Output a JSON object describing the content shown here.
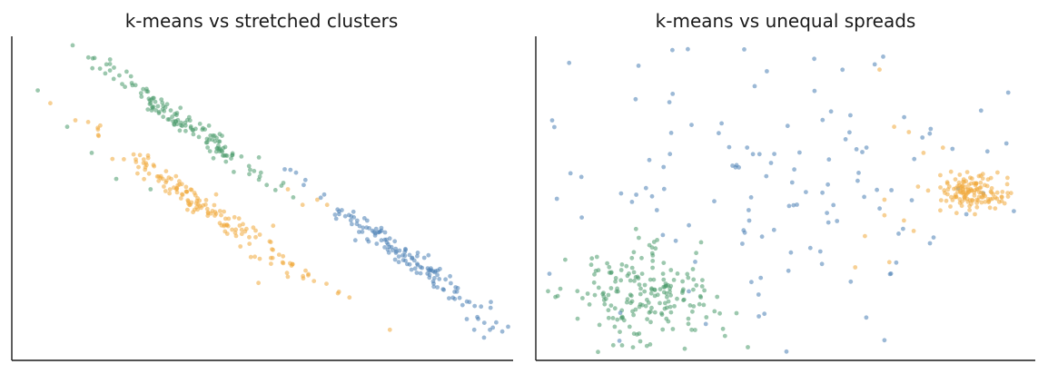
{
  "colors": {
    "blue": "#4a7fb5",
    "orange": "#f0a93c",
    "green": "#4a9a6c",
    "axis": "#1a1a1a"
  },
  "chart_data": [
    {
      "type": "scatter",
      "title": "k-means vs stretched clusters",
      "xlim": [
        0,
        10
      ],
      "ylim": [
        0,
        6
      ],
      "grid": false,
      "series": [
        {
          "color": "green",
          "center": [
            3.2,
            4.6
          ],
          "dir": [
            0.68,
            -0.44
          ],
          "spread": [
            1.1,
            0.1
          ],
          "n": 140,
          "extra": [
            [
              0.4,
              5.1
            ],
            [
              1.8,
              5.6
            ],
            [
              1.5,
              3.9
            ],
            [
              2.0,
              3.4
            ],
            [
              2.7,
              3.2
            ],
            [
              1.0,
              4.4
            ]
          ]
        },
        {
          "color": "orange",
          "center": [
            3.9,
            2.8
          ],
          "dir": [
            0.68,
            -0.44
          ],
          "spread": [
            1.4,
            0.11
          ],
          "n": 160,
          "extra": [
            [
              5.5,
              3.2
            ],
            [
              5.8,
              2.9
            ],
            [
              6.1,
              3.0
            ],
            [
              6.3,
              2.9
            ],
            [
              4.9,
              1.4
            ],
            [
              5.2,
              2.5
            ]
          ]
        },
        {
          "color": "blue",
          "center": [
            7.9,
            1.9
          ],
          "dir": [
            0.68,
            -0.48
          ],
          "spread": [
            1.15,
            0.11
          ],
          "n": 140,
          "extra": [
            [
              9.5,
              0.35
            ],
            [
              9.3,
              0.5
            ],
            [
              6.6,
              2.8
            ]
          ]
        }
      ]
    },
    {
      "type": "scatter",
      "title": "k-means vs unequal spreads",
      "xlim": [
        0,
        10
      ],
      "ylim": [
        0,
        6
      ],
      "grid": false,
      "series": [
        {
          "color": "green",
          "center": [
            2.0,
            1.1
          ],
          "dir": [
            1,
            0
          ],
          "spread": [
            0.75,
            0.45
          ],
          "n": 200,
          "extra": []
        },
        {
          "color": "blue",
          "center": [
            4.7,
            3.4
          ],
          "dir": [
            1,
            0
          ],
          "spread": [
            2.3,
            1.3
          ],
          "n": 140,
          "extra": [
            [
              6.8,
              5.6
            ],
            [
              7.0,
              0.3
            ]
          ]
        },
        {
          "color": "orange",
          "center": [
            8.8,
            3.15
          ],
          "dir": [
            1,
            0
          ],
          "spread": [
            0.35,
            0.17
          ],
          "n": 140,
          "extra": [
            [
              6.9,
              5.5
            ],
            [
              7.2,
              4.4
            ],
            [
              7.5,
              4.3
            ],
            [
              7.8,
              3.9
            ],
            [
              8.2,
              4.0
            ],
            [
              7.0,
              2.7
            ],
            [
              7.4,
              2.6
            ],
            [
              7.6,
              2.4
            ],
            [
              7.1,
              1.8
            ],
            [
              6.6,
              2.3
            ],
            [
              6.4,
              1.7
            ],
            [
              7.0,
              3.0
            ]
          ]
        }
      ]
    }
  ]
}
